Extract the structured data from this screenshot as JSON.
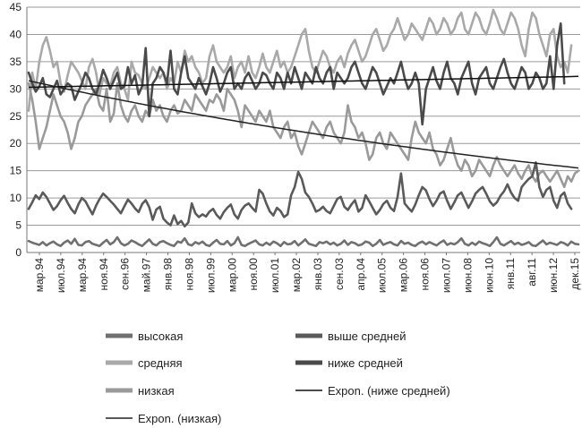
{
  "chart_data": {
    "type": "line",
    "title": "",
    "xlabel": "",
    "ylabel": "",
    "ylim": [
      0,
      45
    ],
    "y_ticks": [
      0,
      5,
      10,
      15,
      20,
      25,
      30,
      35,
      40,
      45
    ],
    "grid": "horizontal",
    "x_tick_labels": [
      "мар.94",
      "июл.94",
      "мар.94",
      "ноя.94",
      "сен.96",
      "май.97",
      "янв.98",
      "ноя.98",
      "июл.99",
      "мар.00",
      "ноя.00",
      "июл.01",
      "мар.02",
      "янв.03",
      "сен.03",
      "апр.04",
      "июл.05",
      "мар.06",
      "ноя.06",
      "июл.07",
      "июн.08",
      "июн.10",
      "янв.11",
      "авг.11",
      "июн.12",
      "дек.15"
    ],
    "points_per_tick": 6,
    "series": [
      {
        "name": "высокая",
        "color": "#707070",
        "values": [
          2.1,
          1.8,
          1.6,
          1.4,
          1.9,
          1.3,
          1.7,
          2.0,
          1.5,
          1.2,
          1.8,
          2.2,
          1.6,
          2.5,
          1.4,
          1.3,
          1.9,
          2.1,
          1.6,
          1.4,
          1.2,
          1.8,
          2.3,
          1.5,
          1.9,
          2.8,
          1.7,
          1.3,
          1.6,
          2.2,
          1.9,
          1.5,
          1.2,
          1.8,
          2.4,
          1.6,
          1.3,
          1.9,
          2.1,
          1.7,
          1.4,
          1.2,
          2.0,
          1.8,
          2.6,
          1.5,
          1.3,
          1.9,
          1.6,
          2.0,
          1.4,
          1.2,
          1.8,
          2.3,
          1.6,
          1.5,
          2.1,
          1.3,
          1.7,
          2.8,
          1.4,
          1.2,
          1.6,
          1.9,
          2.2,
          1.5,
          1.3,
          1.8,
          1.4,
          2.0,
          1.7,
          1.2,
          1.9,
          1.5,
          1.6,
          2.1,
          1.3,
          1.8,
          2.4,
          1.6,
          1.4,
          1.2,
          1.9,
          1.7,
          2.0,
          1.5,
          1.8,
          1.3,
          1.6,
          2.2,
          1.4,
          1.9,
          1.7,
          1.3,
          1.5,
          2.0,
          1.8,
          1.2,
          1.6,
          2.3,
          1.4,
          1.7,
          1.9,
          1.5,
          1.3,
          2.1,
          1.6,
          1.8,
          1.4,
          1.2,
          1.7,
          2.0,
          1.5,
          1.9,
          1.6,
          1.3,
          1.8,
          2.2,
          1.4,
          1.7,
          1.5,
          1.9,
          2.6,
          1.6,
          1.3,
          1.8,
          1.4,
          2.0,
          1.7,
          1.5,
          1.2,
          1.9,
          2.8,
          1.6,
          1.3,
          1.7,
          2.1,
          1.5,
          1.8,
          1.4,
          1.6,
          1.9,
          1.3,
          1.2,
          1.7,
          2.2,
          1.5,
          1.8,
          1.6,
          1.4,
          1.9,
          1.7,
          1.3,
          2.0,
          1.6,
          1.5
        ]
      },
      {
        "name": "выше средней",
        "color": "#5a5a5a",
        "values": [
          8.0,
          9.2,
          10.5,
          9.8,
          11.0,
          10.2,
          9.0,
          7.8,
          8.5,
          9.6,
          10.4,
          9.1,
          8.0,
          7.2,
          8.8,
          10.0,
          9.4,
          8.2,
          7.0,
          8.6,
          9.8,
          10.8,
          10.2,
          9.5,
          8.8,
          8.0,
          7.2,
          8.5,
          9.7,
          9.0,
          8.1,
          7.4,
          8.9,
          9.6,
          8.3,
          6.0,
          7.9,
          8.4,
          6.2,
          5.5,
          5.0,
          6.8,
          5.2,
          5.8,
          4.8,
          5.5,
          9.0,
          7.2,
          6.5,
          7.0,
          6.6,
          7.5,
          8.0,
          6.9,
          6.2,
          7.4,
          8.2,
          8.8,
          7.0,
          6.2,
          7.8,
          8.6,
          9.0,
          8.2,
          7.5,
          11.5,
          10.8,
          9.0,
          7.5,
          6.8,
          8.2,
          7.6,
          6.5,
          7.0,
          10.5,
          12.0,
          14.8,
          13.5,
          11.0,
          10.2,
          9.0,
          7.5,
          7.8,
          8.4,
          7.6,
          7.2,
          8.5,
          9.8,
          10.2,
          8.4,
          7.8,
          8.8,
          9.6,
          7.5,
          8.2,
          10.5,
          9.4,
          8.2,
          7.0,
          7.8,
          8.9,
          9.5,
          8.2,
          7.6,
          10.2,
          14.5,
          9.0,
          8.2,
          7.5,
          8.8,
          10.5,
          12.0,
          11.4,
          9.8,
          8.5,
          9.5,
          10.8,
          11.2,
          9.5,
          8.0,
          9.2,
          10.5,
          11.0,
          9.6,
          8.2,
          9.4,
          10.8,
          11.5,
          12.0,
          10.8,
          9.4,
          8.6,
          9.2,
          10.4,
          11.2,
          12.5,
          11.0,
          10.0,
          9.5,
          12.0,
          12.8,
          13.5,
          14.0,
          16.5,
          12.0,
          10.2,
          11.5,
          12.0,
          9.5,
          8.2,
          10.4,
          11.0,
          9.0,
          8.0
        ]
      },
      {
        "name": "средняя",
        "color": "#a9a9a9",
        "values": [
          26.0,
          33.0,
          30.0,
          35.0,
          38.0,
          39.5,
          37.0,
          34.0,
          35.0,
          31.0,
          29.5,
          32.5,
          35.0,
          34.0,
          33.0,
          31.5,
          30.0,
          34.0,
          35.5,
          33.0,
          29.0,
          32.0,
          31.0,
          30.5,
          33.0,
          34.0,
          31.0,
          30.0,
          28.0,
          35.0,
          33.0,
          32.5,
          31.0,
          30.0,
          32.0,
          34.0,
          33.0,
          32.0,
          33.0,
          30.0,
          32.0,
          31.0,
          35.0,
          33.0,
          37.0,
          35.0,
          36.0,
          34.0,
          33.0,
          31.0,
          32.0,
          36.0,
          38.0,
          35.0,
          34.0,
          33.0,
          34.0,
          36.0,
          32.0,
          34.0,
          35.0,
          33.0,
          36.0,
          33.0,
          32.0,
          34.0,
          36.5,
          34.0,
          33.0,
          35.0,
          37.0,
          34.0,
          35.0,
          33.0,
          34.0,
          36.0,
          38.0,
          40.0,
          41.0,
          37.0,
          34.0,
          33.0,
          35.0,
          37.0,
          36.0,
          34.0,
          33.0,
          35.0,
          36.0,
          34.0,
          36.5,
          38.0,
          39.0,
          37.0,
          35.0,
          36.0,
          38.0,
          40.0,
          41.0,
          39.0,
          37.0,
          38.0,
          40.0,
          41.0,
          43.0,
          41.0,
          39.0,
          40.0,
          42.0,
          41.0,
          40.0,
          39.0,
          41.0,
          43.0,
          42.0,
          40.0,
          41.0,
          43.0,
          42.0,
          40.0,
          41.0,
          43.0,
          44.0,
          41.0,
          40.0,
          42.0,
          44.0,
          43.0,
          41.0,
          40.0,
          42.0,
          44.5,
          43.0,
          41.0,
          40.0,
          42.0,
          44.0,
          43.0,
          41.0,
          38.0,
          36.0,
          41.0,
          44.0,
          43.0,
          40.0,
          38.0,
          36.0,
          40.0,
          41.0,
          36.0,
          34.0,
          35.0,
          33.0,
          38.0
        ]
      },
      {
        "name": "ниже средней",
        "color": "#4a4a4a",
        "values": [
          33.0,
          31.0,
          29.5,
          30.5,
          32.0,
          29.0,
          28.5,
          30.0,
          31.5,
          29.0,
          30.0,
          31.0,
          30.5,
          28.0,
          29.5,
          31.0,
          33.0,
          32.0,
          30.0,
          29.0,
          31.0,
          33.5,
          32.0,
          30.0,
          31.5,
          33.0,
          30.0,
          30.5,
          34.0,
          31.0,
          32.5,
          29.0,
          30.5,
          37.5,
          25.0,
          31.0,
          32.0,
          34.0,
          33.0,
          31.0,
          37.0,
          30.0,
          29.0,
          33.0,
          36.0,
          32.0,
          31.0,
          30.0,
          32.0,
          30.5,
          29.0,
          31.0,
          34.0,
          32.0,
          29.5,
          31.0,
          33.0,
          34.0,
          30.0,
          31.0,
          30.0,
          32.0,
          33.0,
          31.5,
          30.0,
          31.0,
          33.0,
          32.5,
          31.0,
          30.0,
          33.0,
          32.0,
          30.0,
          33.0,
          31.0,
          34.0,
          32.0,
          30.0,
          33.0,
          32.0,
          31.0,
          34.0,
          32.0,
          31.0,
          33.0,
          34.0,
          30.0,
          33.0,
          32.0,
          31.0,
          32.0,
          34.0,
          35.0,
          33.0,
          31.0,
          30.0,
          32.0,
          34.0,
          33.0,
          31.0,
          29.0,
          30.5,
          32.0,
          31.0,
          33.0,
          35.0,
          32.0,
          30.0,
          31.0,
          33.0,
          31.0,
          23.5,
          30.0,
          32.0,
          34.0,
          31.5,
          30.0,
          33.0,
          35.0,
          32.0,
          31.0,
          29.0,
          32.0,
          33.5,
          35.0,
          31.0,
          29.0,
          32.0,
          33.0,
          34.0,
          31.0,
          30.0,
          32.0,
          34.0,
          35.5,
          33.0,
          31.0,
          30.0,
          32.0,
          34.0,
          33.0,
          30.0,
          31.0,
          33.0,
          32.0,
          30.0,
          31.0,
          36.0,
          30.0,
          38.0,
          42.0,
          31.0
        ]
      },
      {
        "name": "низкая",
        "color": "#9a9a9a",
        "values": [
          31.0,
          28.0,
          24.0,
          19.0,
          21.0,
          23.0,
          26.0,
          29.0,
          27.0,
          25.0,
          24.0,
          22.0,
          19.0,
          21.0,
          24.0,
          25.0,
          27.0,
          28.0,
          29.0,
          30.0,
          27.0,
          26.0,
          30.0,
          24.0,
          25.5,
          31.0,
          27.0,
          25.0,
          24.0,
          26.0,
          27.0,
          25.0,
          24.0,
          26.0,
          25.0,
          28.0,
          26.0,
          27.0,
          25.0,
          24.0,
          26.0,
          27.0,
          25.5,
          26.0,
          28.0,
          27.0,
          26.0,
          29.0,
          28.0,
          27.0,
          26.0,
          28.0,
          27.5,
          29.0,
          28.0,
          26.0,
          30.0,
          29.0,
          28.0,
          26.0,
          23.0,
          27.0,
          26.0,
          25.0,
          24.0,
          26.0,
          25.0,
          24.0,
          26.0,
          23.0,
          22.0,
          21.0,
          23.0,
          24.0,
          21.0,
          22.0,
          19.5,
          18.0,
          20.0,
          22.0,
          24.0,
          23.0,
          22.0,
          21.0,
          23.0,
          24.0,
          22.0,
          21.0,
          20.0,
          22.0,
          27.0,
          24.0,
          23.0,
          21.0,
          22.0,
          20.0,
          17.0,
          18.0,
          21.0,
          22.0,
          20.0,
          19.0,
          22.0,
          21.0,
          20.0,
          19.0,
          18.0,
          17.0,
          21.0,
          24.0,
          22.0,
          21.0,
          20.0,
          22.0,
          19.0,
          18.0,
          16.0,
          17.0,
          19.0,
          21.0,
          18.0,
          16.0,
          15.0,
          17.0,
          16.0,
          14.0,
          15.0,
          17.0,
          16.0,
          15.0,
          14.0,
          16.0,
          17.5,
          16.0,
          15.0,
          14.0,
          15.0,
          16.0,
          14.5,
          13.5,
          15.0,
          16.0,
          14.0,
          13.0,
          14.5,
          15.0,
          14.0,
          13.0,
          14.0,
          15.0,
          13.5,
          12.0,
          14.0,
          13.0,
          14.5,
          15.0
        ]
      }
    ],
    "trendlines": [
      {
        "name": "Expon. (ниже средней)",
        "color": "#111111",
        "of_series": "ниже средней",
        "start": 30.3,
        "end": 32.3
      },
      {
        "name": "Expon. (низкая)",
        "color": "#222222",
        "of_series": "низкая",
        "start": 31.5,
        "end": 15.5
      }
    ],
    "legend": {
      "placement": "bottom",
      "entries": [
        {
          "label": "высокая",
          "color": "#707070",
          "style": "thick"
        },
        {
          "label": "выше средней",
          "color": "#5a5a5a",
          "style": "thick"
        },
        {
          "label": "средняя",
          "color": "#a9a9a9",
          "style": "thick"
        },
        {
          "label": "ниже средней",
          "color": "#4a4a4a",
          "style": "thick"
        },
        {
          "label": "низкая",
          "color": "#9a9a9a",
          "style": "thick"
        },
        {
          "label": "Expon. (ниже средней)",
          "color": "#111111",
          "style": "thin"
        },
        {
          "label": "Expon. (низкая)",
          "color": "#222222",
          "style": "thin"
        }
      ]
    }
  }
}
